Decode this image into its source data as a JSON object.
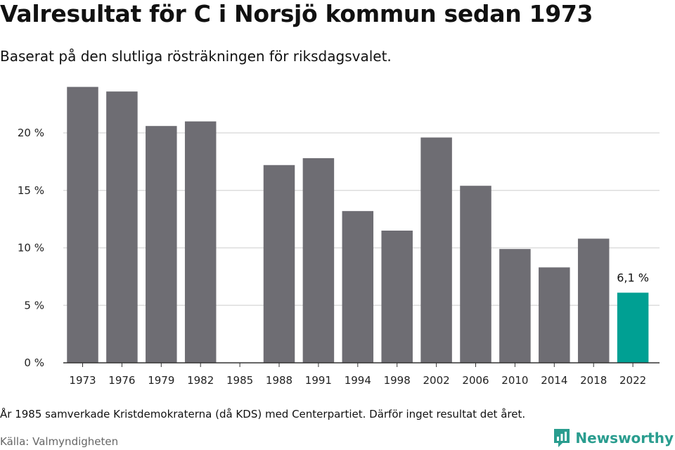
{
  "title": "Valresultat för C i Norsjö kommun sedan 1973",
  "subtitle": "Baserat på den slutliga rösträkningen för riksdagsvalet.",
  "note": "År 1985 samverkade Kristdemokraterna (då KDS) med Centerpartiet. Därför inget resultat det året.",
  "source": "Källa: Valmyndigheten",
  "brand": {
    "name": "Newsworthy",
    "icon": "newsworthy-logo-icon"
  },
  "colors": {
    "bar": "#6e6d73",
    "highlight": "#00a093",
    "grid": "#dddddd",
    "axis": "#333333",
    "brand": "#2a9d8f"
  },
  "chart_data": {
    "type": "bar",
    "categories": [
      "1973",
      "1976",
      "1979",
      "1982",
      "1985",
      "1988",
      "1991",
      "1994",
      "1998",
      "2002",
      "2006",
      "2010",
      "2014",
      "2018",
      "2022"
    ],
    "values": [
      24.0,
      23.6,
      20.6,
      21.0,
      null,
      17.2,
      17.8,
      13.2,
      11.5,
      19.6,
      15.4,
      9.9,
      8.3,
      10.8,
      6.1
    ],
    "highlight_index": 14,
    "highlight_label": "6,1 %",
    "yticks": [
      0,
      5,
      10,
      15,
      20
    ],
    "ytick_labels": [
      "0 %",
      "5 %",
      "10 %",
      "15 %",
      "20 %"
    ],
    "ylim": [
      0,
      25
    ],
    "grid": true
  }
}
